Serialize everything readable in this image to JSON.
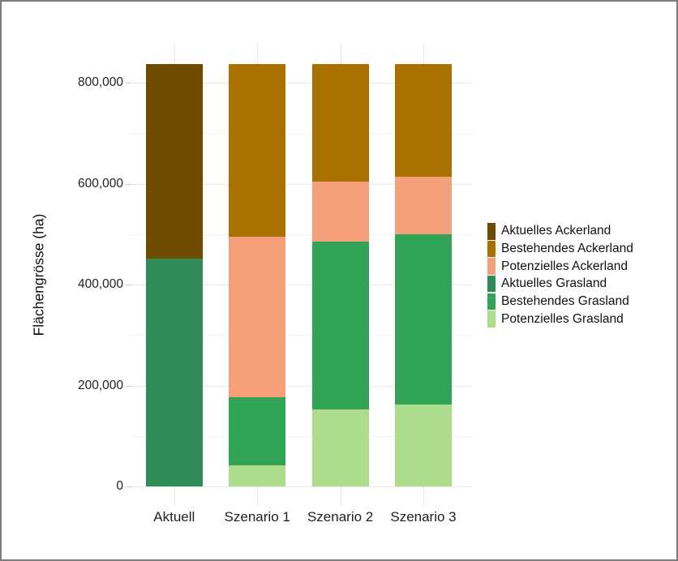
{
  "chart_data": {
    "type": "bar",
    "stacked": true,
    "title": "",
    "xlabel": "",
    "ylabel": "Flächengrösse (ha)",
    "categories": [
      "Aktuell",
      "Szenario 1",
      "Szenario 2",
      "Szenario 3"
    ],
    "series": [
      {
        "name": "Aktuelles Ackerland",
        "color": "#6F4B00",
        "values": [
          385000,
          0,
          0,
          0
        ]
      },
      {
        "name": "Bestehendes Ackerland",
        "color": "#A87100",
        "values": [
          0,
          342000,
          233000,
          223000
        ]
      },
      {
        "name": "Potenzielles Ackerland",
        "color": "#F4A07A",
        "values": [
          0,
          318000,
          119000,
          114000
        ]
      },
      {
        "name": "Aktuelles Grasland",
        "color": "#2F8C58",
        "values": [
          452000,
          0,
          0,
          0
        ]
      },
      {
        "name": "Bestehendes Grasland",
        "color": "#32A456",
        "values": [
          0,
          135000,
          332000,
          338000
        ]
      },
      {
        "name": "Potenzielles Grasland",
        "color": "#ADDC8D",
        "values": [
          0,
          42000,
          153000,
          162000
        ]
      }
    ],
    "stack_order_bottom_to_top": [
      "Potenzielles Grasland",
      "Bestehendes Grasland",
      "Aktuelles Grasland",
      "Potenzielles Ackerland",
      "Bestehendes Ackerland",
      "Aktuelles Ackerland"
    ],
    "bar_total_each": 837000,
    "y_axis": {
      "ticks": [
        0,
        200000,
        400000,
        600000,
        800000
      ],
      "tick_labels": [
        "0",
        "200,000",
        "400,000",
        "600,000",
        "800,000"
      ],
      "minor_ticks": [
        100000,
        300000,
        500000,
        700000
      ],
      "ylim": [
        0,
        837000
      ]
    },
    "legend_position": "right",
    "grid": true,
    "colors": {
      "background": "#ffffff",
      "frame_border": "#7d7d7d",
      "grid_major": "#e7e7e7",
      "grid_minor": "#f2f2f2",
      "axis_text": "#1f1f1f"
    }
  }
}
